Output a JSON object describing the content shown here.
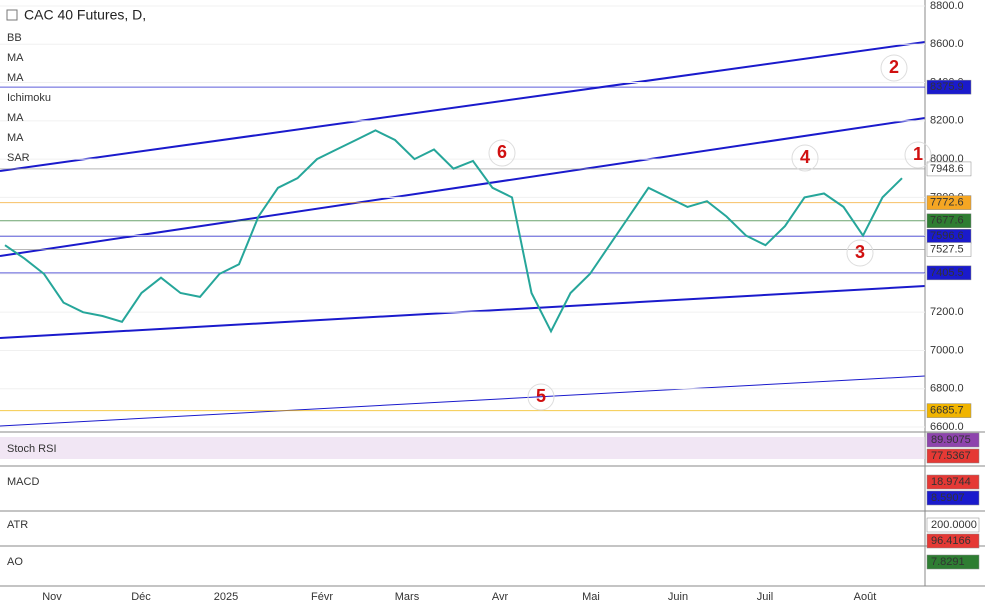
{
  "chart_data": {
    "type": "line",
    "title": "CAC 40 Futures, D,",
    "indicators": [
      "BB",
      "MA",
      "MA",
      "Ichimoku",
      "MA",
      "MA",
      "SAR"
    ],
    "color": "#26a69a",
    "values": [
      7550,
      7480,
      7400,
      7250,
      7200,
      7180,
      7150,
      7300,
      7380,
      7300,
      7280,
      7400,
      7450,
      7700,
      7850,
      7900,
      8000,
      8050,
      8100,
      8150,
      8100,
      8000,
      8050,
      7950,
      7990,
      7850,
      7800,
      7300,
      7100,
      7300,
      7400,
      7550,
      7700,
      7850,
      7800,
      7750,
      7780,
      7700,
      7600,
      7550,
      7650,
      7800,
      7820,
      7750,
      7600,
      7800,
      7900
    ],
    "ylim": [
      6600,
      8800
    ],
    "yticks": [
      {
        "value": 6600,
        "label": "6600.0"
      },
      {
        "value": 6800,
        "label": "6800.0"
      },
      {
        "value": 7000,
        "label": "7000.0"
      },
      {
        "value": 7200,
        "label": "7200.0"
      },
      {
        "value": 7400,
        "label": "7400.0"
      },
      {
        "value": 7600,
        "label": "7600.0"
      },
      {
        "value": 7800,
        "label": "7800.0"
      },
      {
        "value": 8000,
        "label": "8000.0"
      },
      {
        "value": 8200,
        "label": "8200.0"
      },
      {
        "value": 8400,
        "label": "8400.0"
      },
      {
        "value": 8600,
        "label": "8600.0"
      },
      {
        "value": 8800,
        "label": "8800.0"
      }
    ],
    "price_labels": [
      {
        "value": 8375.9,
        "color": "#1a1acc",
        "text_color": "#ffffff"
      },
      {
        "value": 7948.6,
        "color": "#ffffff",
        "text_color": "#000000"
      },
      {
        "value": 7772.6,
        "color": "#f5a623",
        "text_color": "#000000"
      },
      {
        "value": 7677.6,
        "color": "#2e7d32",
        "text_color": "#ffffff"
      },
      {
        "value": 7596.6,
        "color": "#1a1acc",
        "text_color": "#ffffff"
      },
      {
        "value": 7527.5,
        "color": "#ffffff",
        "text_color": "#000000"
      },
      {
        "value": 7405.5,
        "color": "#1a1acc",
        "text_color": "#ffffff"
      },
      {
        "value": 6685.7,
        "color": "#f0b400",
        "text_color": "#000000"
      }
    ],
    "x_labels": [
      "Nov",
      "Déc",
      "2025",
      "Févr",
      "Mars",
      "Avr",
      "Mai",
      "Juin",
      "Juil",
      "Août"
    ],
    "wave_labels": [
      "1",
      "2",
      "3",
      "4",
      "5",
      "6"
    ],
    "panes": [
      {
        "name": "Stoch RSI",
        "labels": [
          {
            "value": 89.9075,
            "color": "#8e44ad",
            "text_color": "#ffffff"
          },
          {
            "value": 77.5367,
            "color": "#e53935",
            "text_color": "#ffffff"
          }
        ]
      },
      {
        "name": "MACD",
        "labels": [
          {
            "value": 18.9744,
            "color": "#e53935",
            "text_color": "#ffffff"
          },
          {
            "value": 8.5907,
            "color": "#1a1acc",
            "text_color": "#ffffff"
          }
        ]
      },
      {
        "name": "ATR",
        "labels": [
          {
            "value": {
              "value": 200,
              "label": "200.0000"
            },
            "color": "#ffffff",
            "text_color": "#000000"
          },
          {
            "value": 96.4166,
            "color": "#e53935",
            "text_color": "#ffffff"
          }
        ]
      },
      {
        "name": "AO",
        "labels": [
          {
            "value": 7.8291,
            "color": "#2e7d32",
            "text_color": "#ffffff"
          }
        ]
      }
    ]
  }
}
